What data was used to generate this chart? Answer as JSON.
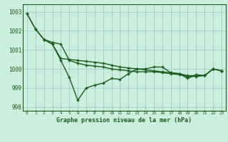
{
  "title": "Graphe pression niveau de la mer (hPa)",
  "bg_color": "#cceedd",
  "grid_color": "#aacccc",
  "line_color": "#1a5c1a",
  "text_color": "#1a5c1a",
  "xlim": [
    -0.5,
    23.5
  ],
  "ylim": [
    997.8,
    1003.4
  ],
  "yticks": [
    998,
    999,
    1000,
    1001,
    1002,
    1003
  ],
  "xticks": [
    0,
    1,
    2,
    3,
    4,
    5,
    6,
    7,
    8,
    9,
    10,
    11,
    12,
    13,
    14,
    15,
    16,
    17,
    18,
    19,
    20,
    21,
    22,
    23
  ],
  "series1_x": [
    0,
    1,
    2,
    3,
    4,
    5,
    6,
    7,
    8,
    9,
    10,
    11,
    12,
    13,
    14,
    15,
    16,
    17,
    18,
    19,
    20,
    21,
    22,
    23
  ],
  "series1_y": [
    1002.9,
    1002.1,
    1001.55,
    1001.3,
    1000.45,
    999.55,
    998.35,
    999.0,
    999.15,
    999.25,
    999.5,
    999.45,
    999.75,
    1000.0,
    1000.0,
    1000.1,
    1000.1,
    999.8,
    999.75,
    999.5,
    999.7,
    999.65,
    1000.0,
    999.9
  ],
  "series2_x": [
    0,
    1,
    2,
    3,
    4,
    5,
    6,
    7,
    8,
    9,
    10,
    11,
    12,
    13,
    14,
    15,
    16,
    17,
    18,
    19,
    20,
    21,
    22,
    23
  ],
  "series2_y": [
    1002.9,
    1002.1,
    1001.55,
    1001.4,
    1001.3,
    1000.45,
    1000.3,
    1000.2,
    1000.15,
    1000.1,
    1000.0,
    999.95,
    999.9,
    999.85,
    999.85,
    999.85,
    999.8,
    999.75,
    999.7,
    999.6,
    999.6,
    999.65,
    1000.0,
    999.9
  ],
  "series3_x": [
    2,
    3,
    4,
    5,
    6,
    7,
    8,
    9,
    10,
    11,
    12,
    13,
    14,
    15,
    16,
    17,
    18,
    19,
    20,
    21,
    22,
    23
  ],
  "series3_y": [
    1001.55,
    1001.3,
    1000.55,
    1000.5,
    1000.45,
    1000.4,
    1000.35,
    1000.3,
    1000.2,
    1000.1,
    1000.05,
    1000.0,
    999.95,
    999.9,
    999.85,
    999.8,
    999.75,
    999.65,
    999.65,
    999.65,
    1000.0,
    999.9
  ]
}
